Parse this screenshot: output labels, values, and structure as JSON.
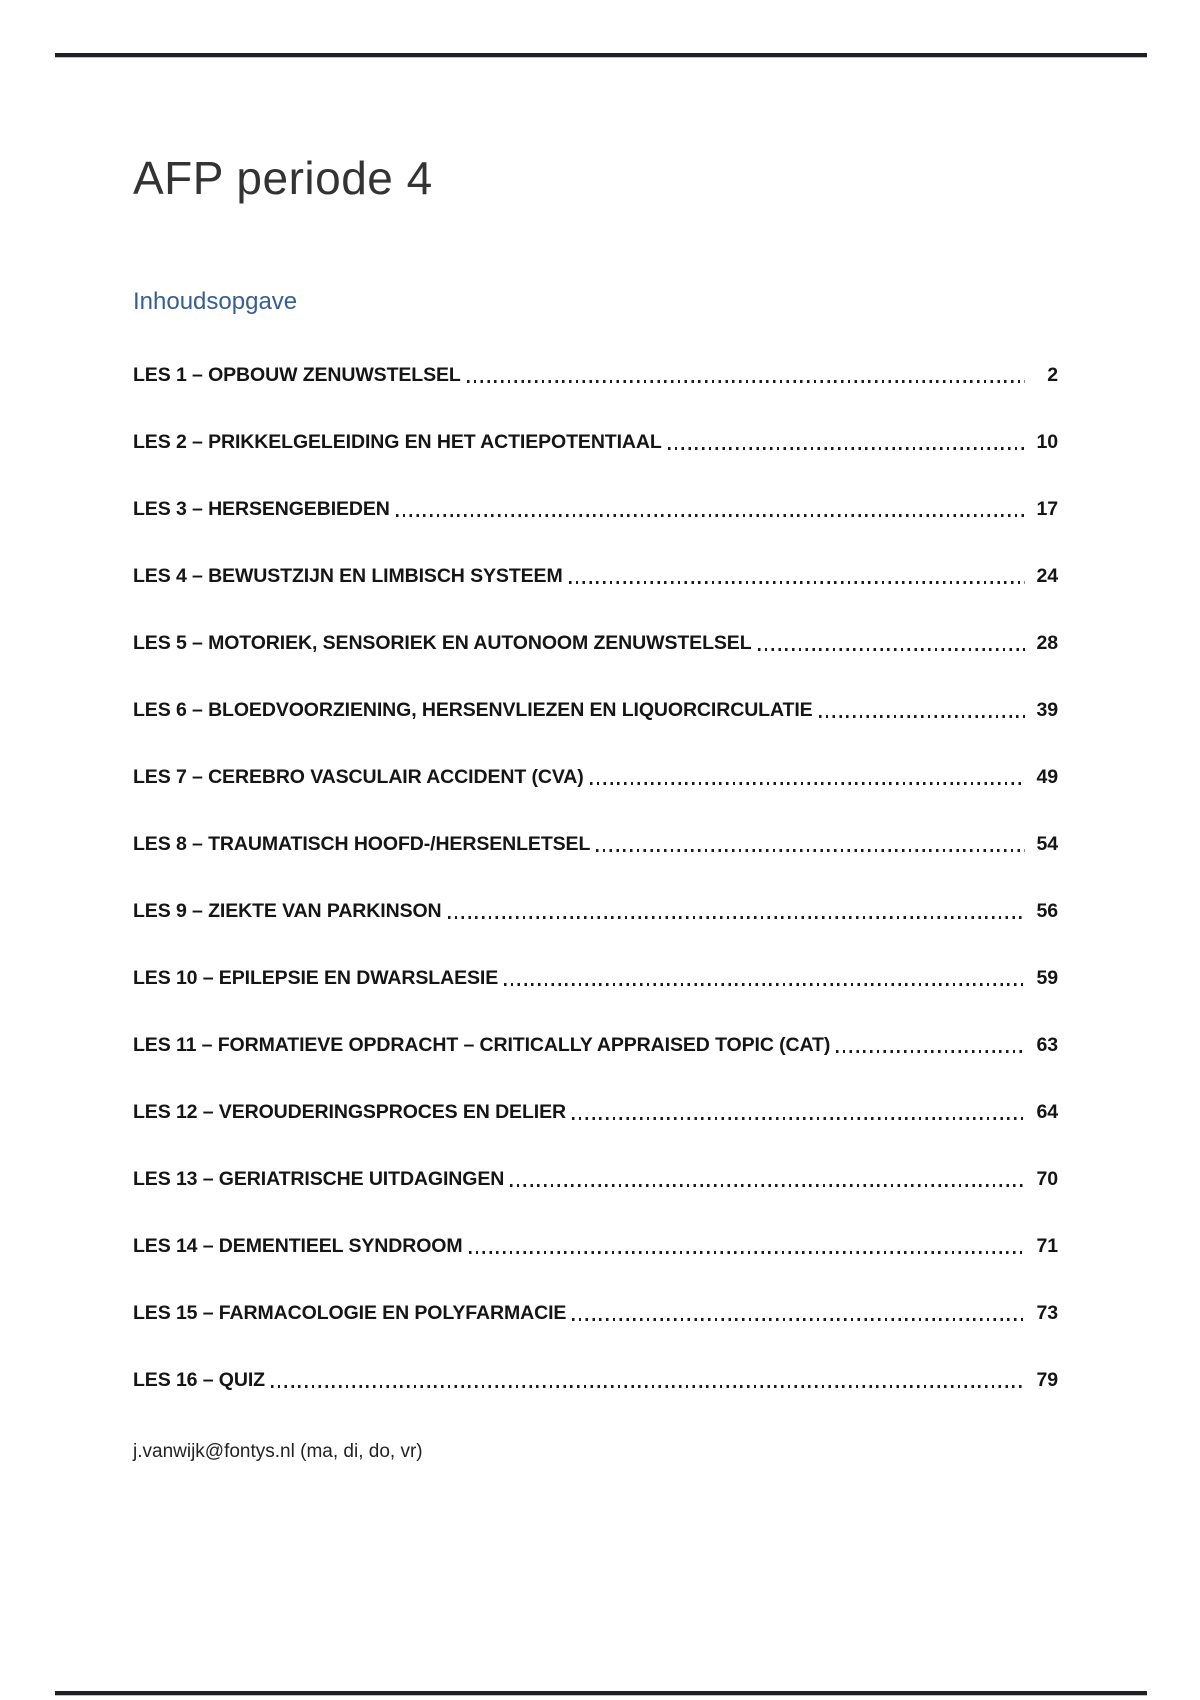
{
  "page": {
    "title": "AFP periode 4",
    "toc_heading": "Inhoudsopgave",
    "footer_note": "j.vanwijk@fontys.nl (ma, di, do, vr)",
    "colors": {
      "heading_blue": "#365f91",
      "body_text": "#1a1a1a",
      "rule": "#1f2023"
    }
  },
  "toc": {
    "entries": [
      {
        "label": "LES 1 – OPBOUW ZENUWSTELSEL",
        "page": "2"
      },
      {
        "label": "LES 2 – PRIKKELGELEIDING EN HET ACTIEPOTENTIAAL",
        "page": "10"
      },
      {
        "label": "LES 3 – HERSENGEBIEDEN",
        "page": "17"
      },
      {
        "label": "LES 4 – BEWUSTZIJN EN LIMBISCH SYSTEEM",
        "page": "24"
      },
      {
        "label": "LES 5 – MOTORIEK, SENSORIEK EN AUTONOOM ZENUWSTELSEL",
        "page": "28"
      },
      {
        "label": "LES 6 – BLOEDVOORZIENING, HERSENVLIEZEN EN LIQUORCIRCULATIE",
        "page": "39"
      },
      {
        "label": "LES 7 – CEREBRO VASCULAIR ACCIDENT (CVA)",
        "page": "49"
      },
      {
        "label": "LES 8 – TRAUMATISCH HOOFD-/HERSENLETSEL",
        "page": "54"
      },
      {
        "label": "LES 9 – ZIEKTE VAN PARKINSON",
        "page": "56"
      },
      {
        "label": "LES 10 – EPILEPSIE EN DWARSLAESIE",
        "page": "59"
      },
      {
        "label": "LES 11 – FORMATIEVE OPDRACHT – CRITICALLY APPRAISED TOPIC (CAT)",
        "page": "63"
      },
      {
        "label": "LES 12 – VEROUDERINGSPROCES EN DELIER",
        "page": "64"
      },
      {
        "label": "LES 13 – GERIATRISCHE UITDAGINGEN",
        "page": "70"
      },
      {
        "label": "LES 14 – DEMENTIEEL SYNDROOM",
        "page": "71"
      },
      {
        "label": "LES 15 – FARMACOLOGIE EN POLYFARMACIE",
        "page": "73"
      },
      {
        "label": "LES 16 – QUIZ",
        "page": "79"
      }
    ]
  }
}
